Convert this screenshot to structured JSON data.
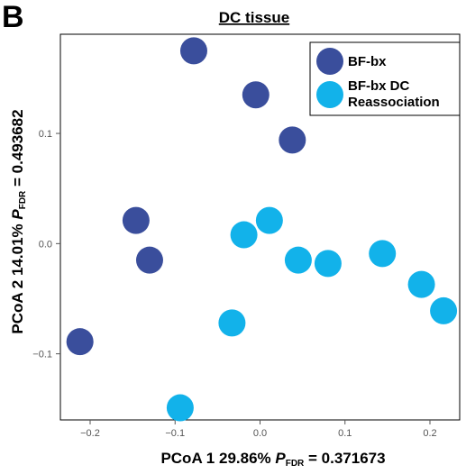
{
  "panel_label": "B",
  "chart_data": {
    "type": "scatter",
    "title": "DC tissue",
    "xlabel": {
      "main": "PCoA 1 29.86% ",
      "p": "P",
      "sub": "FDR",
      "rest": " = 0.371673"
    },
    "ylabel": {
      "main": "PCoA 2 14.01% ",
      "p": "P",
      "sub": "FDR",
      "rest": " = 0.493682"
    },
    "xlim": [
      -0.235,
      0.235
    ],
    "ylim": [
      -0.16,
      0.19
    ],
    "xticks": [
      -0.2,
      -0.1,
      0.0,
      0.1,
      0.2
    ],
    "xtick_labels": [
      "-0.2",
      "-0.1",
      "0.0",
      "0.1",
      "0.2"
    ],
    "yticks": [
      -0.1,
      0.0,
      0.1
    ],
    "ytick_labels": [
      "-0.1",
      "0.0",
      "0.1"
    ],
    "grid": false,
    "legend_position": "top-right",
    "series": [
      {
        "name": "BF-bx",
        "color": "#3a4e9c",
        "points": [
          {
            "x": -0.078,
            "y": 0.175
          },
          {
            "x": -0.005,
            "y": 0.135
          },
          {
            "x": 0.038,
            "y": 0.094
          },
          {
            "x": -0.146,
            "y": 0.021
          },
          {
            "x": -0.13,
            "y": -0.015
          },
          {
            "x": -0.212,
            "y": -0.089
          }
        ]
      },
      {
        "name": "BF-bx DC\nReassociation",
        "color": "#12b2ea",
        "points": [
          {
            "x": 0.011,
            "y": 0.021
          },
          {
            "x": -0.019,
            "y": 0.008
          },
          {
            "x": 0.045,
            "y": -0.015
          },
          {
            "x": 0.08,
            "y": -0.018
          },
          {
            "x": 0.144,
            "y": -0.009
          },
          {
            "x": 0.19,
            "y": -0.037
          },
          {
            "x": 0.216,
            "y": -0.061
          },
          {
            "x": -0.033,
            "y": -0.072
          },
          {
            "x": -0.094,
            "y": -0.149
          }
        ]
      }
    ]
  }
}
